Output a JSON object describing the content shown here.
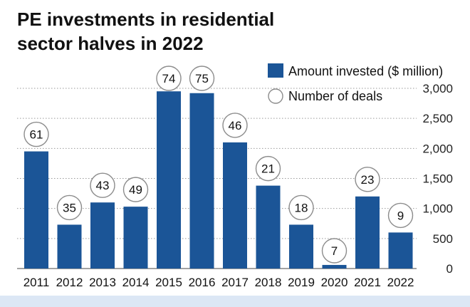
{
  "title_line1": "PE investments in residential",
  "title_line2": "sector halves in 2022",
  "colors": {
    "bar": "#1b5597",
    "circle_fill": "#ffffff",
    "circle_stroke": "#8c8c8c",
    "gridline": "#9a9a9a",
    "bottom_strip": "#dce7f5"
  },
  "chart_data": {
    "type": "bar",
    "categories": [
      "2011",
      "2012",
      "2013",
      "2014",
      "2015",
      "2016",
      "2017",
      "2018",
      "2019",
      "2020",
      "2021",
      "2022"
    ],
    "series": [
      {
        "name": "Amount invested ($ million)",
        "values": [
          1950,
          730,
          1100,
          1030,
          2950,
          2920,
          2100,
          1380,
          730,
          60,
          1200,
          600
        ]
      },
      {
        "name": "Number of deals",
        "values": [
          61,
          35,
          43,
          49,
          74,
          75,
          46,
          21,
          18,
          7,
          23,
          9
        ]
      }
    ],
    "y_ticks": [
      "0",
      "500",
      "1,000",
      "1,500",
      "2,000",
      "2,500",
      "3,000"
    ],
    "ylim": [
      0,
      3000
    ],
    "grid": true,
    "y_axis_side": "right",
    "legend": {
      "placement": "top-right",
      "items": [
        "Amount invested ($ million)",
        "Number of deals"
      ]
    }
  }
}
